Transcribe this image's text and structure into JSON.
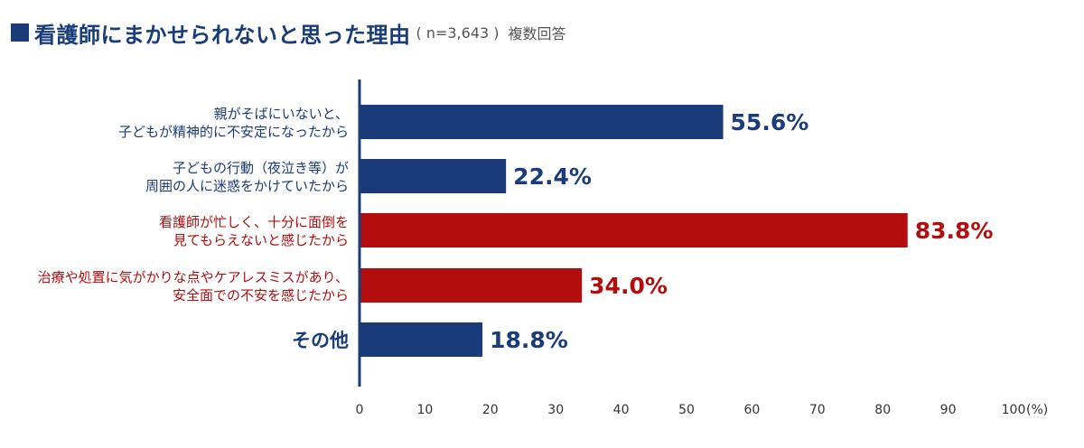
{
  "colors": {
    "blue": "#1a3c7a",
    "red": "#b30d0d",
    "axis": "#1a3c7a",
    "tick": "#333333"
  },
  "header": {
    "title": "看護師にまかせられないと思った理由",
    "sample": "( n=3,643 )",
    "note": "複数回答"
  },
  "chart_data": {
    "type": "bar",
    "orientation": "horizontal",
    "categories": [
      [
        "親がそばにいないと、",
        "子どもが精神的に不安定になったから"
      ],
      [
        "子どもの行動（夜泣き等）が",
        "周囲の人に迷惑をかけていたから"
      ],
      [
        "看護師が忙しく、十分に面倒を",
        "見てもらえないと感じたから"
      ],
      [
        "治療や処置に気がかりな点やケアレスミスがあり、",
        "安全面での不安を感じたから"
      ],
      [
        "その他"
      ]
    ],
    "values": [
      55.6,
      22.4,
      83.8,
      34.0,
      18.8
    ],
    "value_labels": [
      "55.6%",
      "22.4%",
      "83.8%",
      "34.0%",
      "18.8%"
    ],
    "highlight": [
      false,
      false,
      true,
      true,
      false
    ],
    "xlim": [
      0,
      100
    ],
    "xticks": [
      "0",
      "10",
      "20",
      "30",
      "40",
      "50",
      "60",
      "70",
      "80",
      "90",
      "100"
    ],
    "xunit": "(%)",
    "grid": false
  }
}
